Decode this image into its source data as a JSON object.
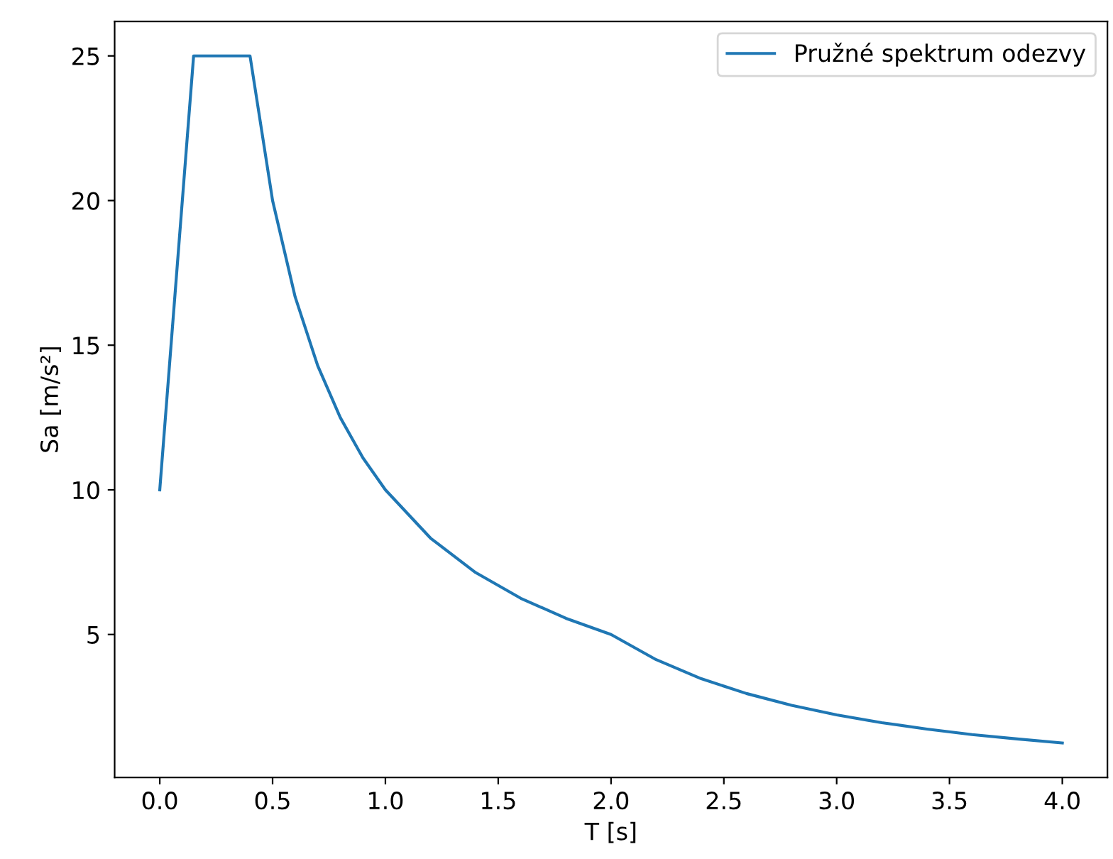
{
  "chart_data": {
    "type": "line",
    "xlabel": "T [s]",
    "ylabel": "Sa [m/s²]",
    "series": [
      {
        "name": "Pružné spektrum odezvy",
        "color": "#1f77b4",
        "x": [
          0,
          0.15,
          0.4,
          0.5,
          0.6,
          0.7,
          0.8,
          0.9,
          1.0,
          1.2,
          1.4,
          1.6,
          1.8,
          2.0,
          2.2,
          2.4,
          2.6,
          2.8,
          3.0,
          3.2,
          3.4,
          3.6,
          3.8,
          4.0
        ],
        "values": [
          10,
          25,
          25,
          20,
          16.67,
          14.29,
          12.5,
          11.11,
          10,
          8.33,
          7.14,
          6.25,
          5.56,
          5,
          4.13,
          3.47,
          2.96,
          2.55,
          2.22,
          1.95,
          1.73,
          1.54,
          1.39,
          1.25
        ]
      }
    ],
    "xlim": [
      -0.2,
      4.2
    ],
    "xticks": [
      {
        "value": 0,
        "label": "0.0"
      },
      {
        "value": 0.5,
        "label": "0.5"
      },
      {
        "value": 1,
        "label": "1.0"
      },
      {
        "value": 1.5,
        "label": "1.5"
      },
      {
        "value": 2,
        "label": "2.0"
      },
      {
        "value": 2.5,
        "label": "2.5"
      },
      {
        "value": 3,
        "label": "3.0"
      },
      {
        "value": 3.5,
        "label": "3.5"
      },
      {
        "value": 4,
        "label": "4.0"
      }
    ],
    "ylim": [
      0.06,
      26.19
    ],
    "yticks": [
      5,
      10,
      15,
      20,
      25
    ],
    "legend": "top right",
    "grid": false,
    "marker": "none",
    "line_style": "solid"
  }
}
